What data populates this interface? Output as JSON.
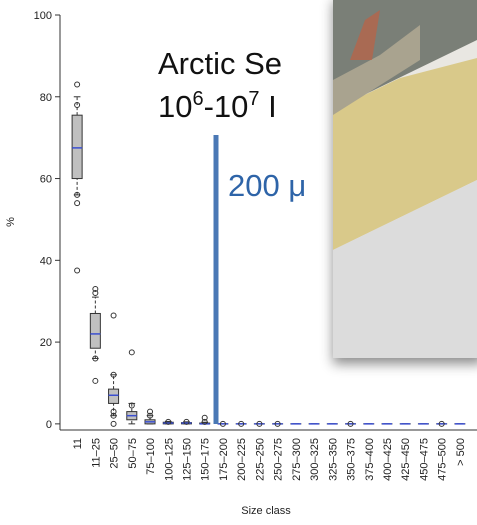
{
  "chart_data": {
    "type": "box",
    "x_label": "Size class",
    "y_label": "%",
    "categories": [
      "11",
      "11–25",
      "25–50",
      "50–75",
      "75–100",
      "100–125",
      "125–150",
      "150–175",
      "175–200",
      "200–225",
      "225–250",
      "250–275",
      "275–300",
      "300–325",
      "325–350",
      "350–375",
      "375–400",
      "400–425",
      "425–450",
      "450–475",
      "475–500",
      "> 500"
    ],
    "boxes": [
      {
        "whisker_low": 56,
        "q1": 60,
        "median": 67.5,
        "q3": 75.5,
        "whisker_high": 80,
        "outliers": [
          83,
          78,
          56,
          54,
          37.5
        ]
      },
      {
        "whisker_low": 16,
        "q1": 18.5,
        "median": 22,
        "q3": 27,
        "whisker_high": 31,
        "outliers": [
          33,
          32,
          16,
          10.5
        ]
      },
      {
        "whisker_low": 2,
        "q1": 5,
        "median": 7,
        "q3": 8.5,
        "whisker_high": 12,
        "outliers": [
          26.5,
          12,
          3,
          2,
          0
        ]
      },
      {
        "whisker_low": 0,
        "q1": 1,
        "median": 2,
        "q3": 3,
        "whisker_high": 5,
        "outliers": [
          17.5,
          4.5
        ]
      },
      {
        "whisker_low": 0,
        "q1": 0,
        "median": 0.5,
        "q3": 1,
        "whisker_high": 2,
        "outliers": [
          3,
          2
        ]
      },
      {
        "whisker_low": 0,
        "q1": 0,
        "median": 0.2,
        "q3": 0.4,
        "whisker_high": 0.6,
        "outliers": [
          0.5
        ]
      },
      {
        "whisker_low": 0,
        "q1": 0,
        "median": 0.2,
        "q3": 0.3,
        "whisker_high": 0.5,
        "outliers": [
          0.5
        ]
      },
      {
        "whisker_low": 0,
        "q1": 0,
        "median": 0,
        "q3": 0.2,
        "whisker_high": 0.4,
        "outliers": [
          1.5,
          0.5
        ]
      },
      {
        "whisker_low": 0,
        "q1": 0,
        "median": 0,
        "q3": 0,
        "whisker_high": 0,
        "outliers": [
          0
        ]
      },
      {
        "whisker_low": 0,
        "q1": 0,
        "median": 0,
        "q3": 0,
        "whisker_high": 0,
        "outliers": [
          0
        ]
      },
      {
        "whisker_low": 0,
        "q1": 0,
        "median": 0,
        "q3": 0,
        "whisker_high": 0,
        "outliers": [
          0
        ]
      },
      {
        "whisker_low": 0,
        "q1": 0,
        "median": 0,
        "q3": 0,
        "whisker_high": 0,
        "outliers": [
          0
        ]
      },
      {
        "whisker_low": 0,
        "q1": 0,
        "median": 0,
        "q3": 0,
        "whisker_high": 0,
        "outliers": []
      },
      {
        "whisker_low": 0,
        "q1": 0,
        "median": 0,
        "q3": 0,
        "whisker_high": 0,
        "outliers": []
      },
      {
        "whisker_low": 0,
        "q1": 0,
        "median": 0,
        "q3": 0,
        "whisker_high": 0,
        "outliers": []
      },
      {
        "whisker_low": 0,
        "q1": 0,
        "median": 0,
        "q3": 0,
        "whisker_high": 0,
        "outliers": [
          0
        ]
      },
      {
        "whisker_low": 0,
        "q1": 0,
        "median": 0,
        "q3": 0,
        "whisker_high": 0,
        "outliers": []
      },
      {
        "whisker_low": 0,
        "q1": 0,
        "median": 0,
        "q3": 0,
        "whisker_high": 0,
        "outliers": []
      },
      {
        "whisker_low": 0,
        "q1": 0,
        "median": 0,
        "q3": 0,
        "whisker_high": 0,
        "outliers": []
      },
      {
        "whisker_low": 0,
        "q1": 0,
        "median": 0,
        "q3": 0,
        "whisker_high": 0,
        "outliers": []
      },
      {
        "whisker_low": 0,
        "q1": 0,
        "median": 0,
        "q3": 0,
        "whisker_high": 0,
        "outliers": [
          0
        ]
      },
      {
        "whisker_low": 0,
        "q1": 0,
        "median": 0,
        "q3": 0,
        "whisker_high": 0,
        "outliers": []
      }
    ],
    "box_color": "#c0c0c0",
    "median_color": "#3b4fd0",
    "ylim": [
      -1.5,
      100
    ],
    "yticks": [
      0,
      20,
      40,
      60,
      80,
      100
    ]
  },
  "overlay": {
    "line1": "Arctic Se",
    "line2": [
      "10",
      "6",
      "-10",
      "7",
      " I"
    ],
    "line3": "200 μ"
  }
}
